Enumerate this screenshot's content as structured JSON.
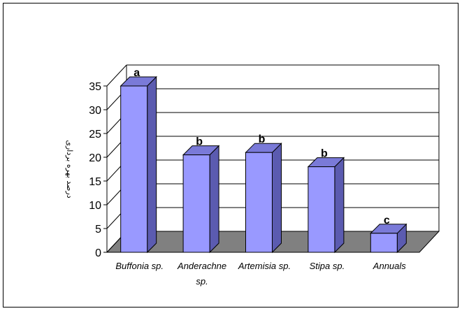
{
  "chart_data": {
    "type": "bar",
    "title": "",
    "xlabel": "",
    "ylabel": "درصد بهره برداری",
    "ylim": [
      0,
      35
    ],
    "yticks": [
      0,
      5,
      10,
      15,
      20,
      25,
      30,
      35
    ],
    "grid": true,
    "legend": "none",
    "categories": [
      [
        "Buffonia sp."
      ],
      [
        "Anderachne",
        "sp."
      ],
      [
        "Artemisia sp."
      ],
      [
        "Stipa sp."
      ],
      [
        "Annuals"
      ]
    ],
    "values": [
      35,
      20.5,
      21,
      18,
      4
    ],
    "significance_labels": [
      "a",
      "b",
      "b",
      "b",
      "c"
    ],
    "colors": {
      "bar_front": "#9999ff",
      "bar_side": "#5b5bb0",
      "bar_top": "#7a7ad8",
      "floor": "#808080",
      "grid": "#000000",
      "axis": "#000000"
    }
  }
}
